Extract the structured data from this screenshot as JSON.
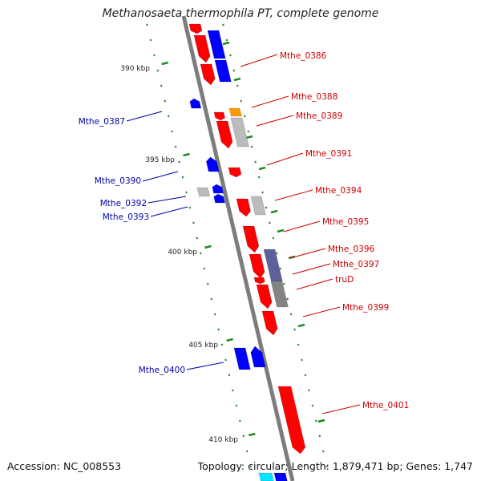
{
  "title": "Methanosaeta thermophila PT, complete genome",
  "footer": {
    "accession": "Accession: NC_008553",
    "summary": "Topology: circular; Length: 1,879,471 bp; Genes: 1,747"
  },
  "colors": {
    "forward_gene": "#ff0000",
    "reverse_gene": "#0000ff",
    "orange_gene": "#ff9900",
    "grey_gene": "#bbbbbb",
    "dark_grey_gene": "#777777",
    "purple_gene": "#444488",
    "cyan_gene": "#00e5ff",
    "tick": "#228822",
    "backbone": "#888888",
    "forward_label": "#cc0000",
    "reverse_label": "#0000aa"
  },
  "ruler": {
    "labels": [
      "390 kbp",
      "395 kbp",
      "400 kbp",
      "405 kbp",
      "410 kbp"
    ]
  },
  "gene_labels": {
    "forward": [
      "Mthe_0386",
      "Mthe_0388",
      "Mthe_0389",
      "Mthe_0391",
      "Mthe_0394",
      "Mthe_0395",
      "Mthe_0396",
      "Mthe_0397",
      "truD",
      "Mthe_0399",
      "Mthe_0401"
    ],
    "reverse": [
      "Mthe_0387",
      "Mthe_0390",
      "Mthe_0392",
      "Mthe_0393",
      "Mthe_0400"
    ]
  }
}
